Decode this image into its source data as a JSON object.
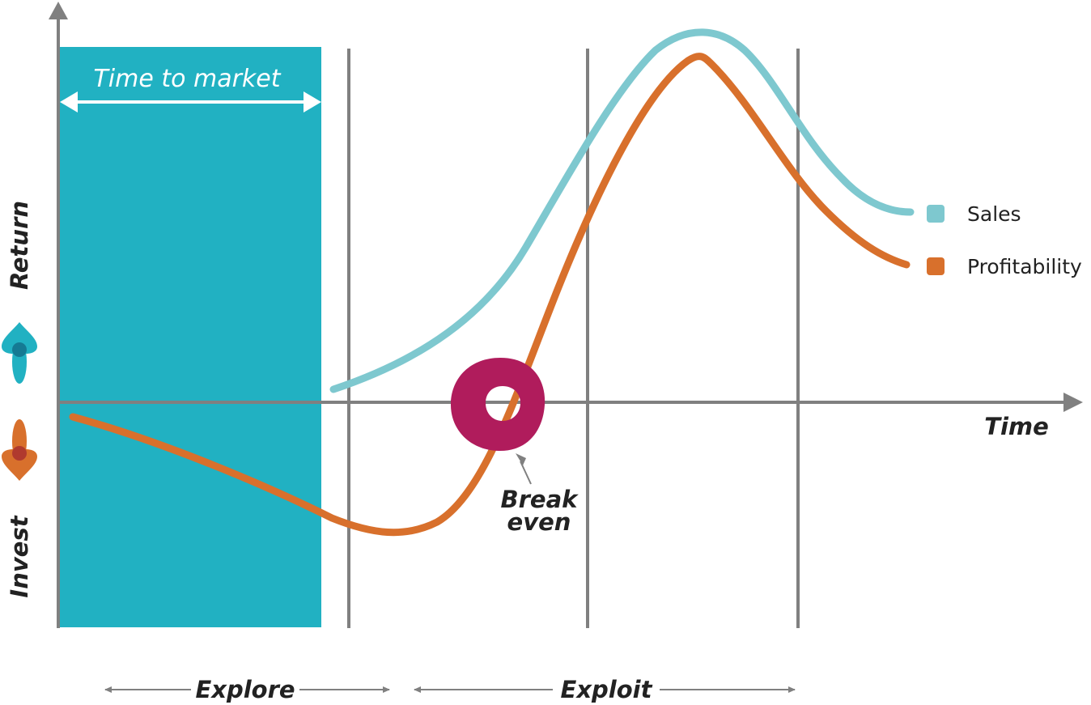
{
  "labels": {
    "time_to_market": "Time to market",
    "time_axis": "Time",
    "return": "Return",
    "invest": "Invest",
    "break": "Break",
    "even": "even",
    "explore": "Explore",
    "exploit": "Exploit"
  },
  "legend": [
    {
      "name": "Sales",
      "color": "#7ec8cf"
    },
    {
      "name": "Profitability",
      "color": "#d8702c"
    }
  ],
  "colors": {
    "teal_block": "#21b1c2",
    "axis_gray": "#808080",
    "break_even_marker": "#b01c5c",
    "return_arrow": "#21b1c2",
    "invest_arrow": "#d8702c"
  },
  "icons": {
    "return_arrow": "up-arrow-icon",
    "invest_arrow": "down-arrow-icon",
    "break_even": "ring-marker-icon"
  }
}
